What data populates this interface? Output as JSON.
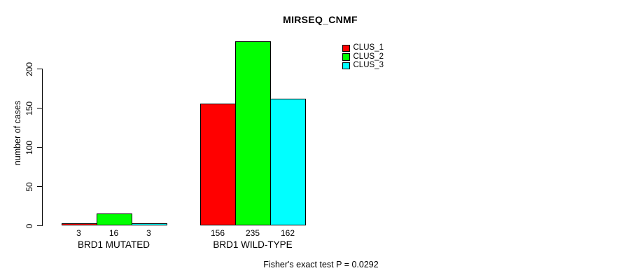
{
  "chart_data": {
    "type": "bar",
    "title": "MIRSEQ_CNMF",
    "ylabel": "number of cases",
    "xlabel": "",
    "categories": [
      "BRD1 MUTATED",
      "BRD1 WILD-TYPE"
    ],
    "series": [
      {
        "name": "CLUS_1",
        "color": "#ff0000",
        "values": [
          3,
          156
        ]
      },
      {
        "name": "CLUS_2",
        "color": "#00ff00",
        "values": [
          16,
          235
        ]
      },
      {
        "name": "CLUS_3",
        "color": "#00ffff",
        "values": [
          3,
          162
        ]
      }
    ],
    "yticks": [
      0,
      50,
      100,
      150,
      200
    ],
    "ylim": [
      0,
      240
    ],
    "grid": false,
    "show_bar_values": true,
    "legend_position": "top-right",
    "annotation": "Fisher's exact test P = 0.0292"
  }
}
